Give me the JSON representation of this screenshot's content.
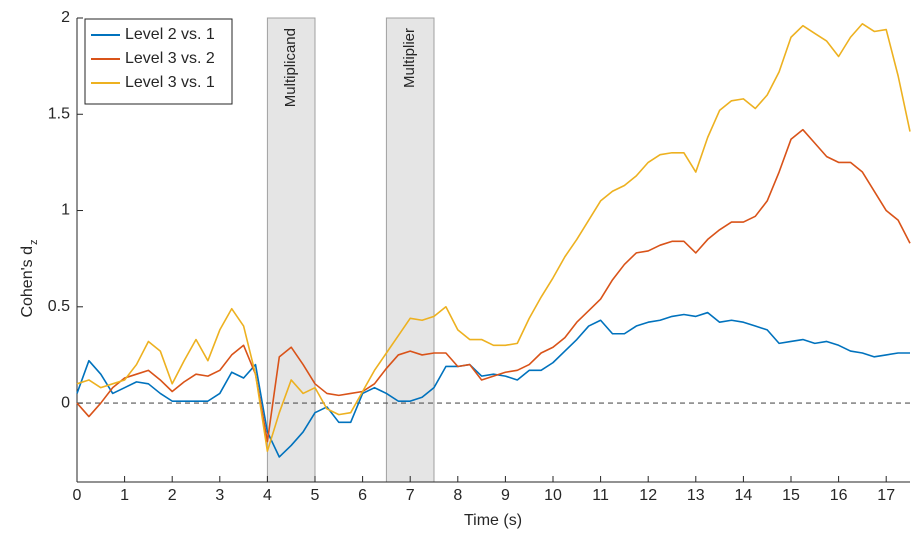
{
  "chart_data": {
    "type": "line",
    "x_label": "Time (s)",
    "y_label": "Cohen's d",
    "y_label_subscript": "z",
    "x": [
      0,
      0.25,
      0.5,
      0.75,
      1,
      1.25,
      1.5,
      1.75,
      2,
      2.25,
      2.5,
      2.75,
      3,
      3.25,
      3.5,
      3.75,
      4,
      4.25,
      4.5,
      4.75,
      5,
      5.25,
      5.5,
      5.75,
      6,
      6.25,
      6.5,
      6.75,
      7,
      7.25,
      7.5,
      7.75,
      8,
      8.25,
      8.5,
      8.75,
      9,
      9.25,
      9.5,
      9.75,
      10,
      10.25,
      10.5,
      10.75,
      11,
      11.25,
      11.5,
      11.75,
      12,
      12.25,
      12.5,
      12.75,
      13,
      13.25,
      13.5,
      13.75,
      14,
      14.25,
      14.5,
      14.75,
      15,
      15.25,
      15.5,
      15.75,
      16,
      16.25,
      16.5,
      16.75,
      17,
      17.25,
      17.5
    ],
    "series": [
      {
        "name": "Level 2 vs. 1",
        "color": "#0072BD",
        "values": [
          0.05,
          0.22,
          0.15,
          0.05,
          0.08,
          0.11,
          0.1,
          0.05,
          0.01,
          0.01,
          0.01,
          0.01,
          0.05,
          0.16,
          0.13,
          0.2,
          -0.15,
          -0.28,
          -0.22,
          -0.15,
          -0.05,
          -0.02,
          -0.1,
          -0.1,
          0.05,
          0.08,
          0.05,
          0.01,
          0.01,
          0.03,
          0.08,
          0.19,
          0.19,
          0.2,
          0.14,
          0.15,
          0.14,
          0.12,
          0.17,
          0.17,
          0.21,
          0.27,
          0.33,
          0.4,
          0.43,
          0.36,
          0.36,
          0.4,
          0.42,
          0.43,
          0.45,
          0.46,
          0.45,
          0.47,
          0.42,
          0.43,
          0.42,
          0.4,
          0.38,
          0.31,
          0.32,
          0.33,
          0.31,
          0.32,
          0.3,
          0.27,
          0.26,
          0.24,
          0.25,
          0.26,
          0.26
        ]
      },
      {
        "name": "Level 3 vs. 2",
        "color": "#D95319",
        "values": [
          0.0,
          -0.07,
          0.0,
          0.08,
          0.13,
          0.15,
          0.17,
          0.12,
          0.06,
          0.11,
          0.15,
          0.14,
          0.17,
          0.25,
          0.3,
          0.15,
          -0.2,
          0.24,
          0.29,
          0.2,
          0.1,
          0.05,
          0.04,
          0.05,
          0.06,
          0.1,
          0.18,
          0.25,
          0.27,
          0.25,
          0.26,
          0.26,
          0.19,
          0.2,
          0.12,
          0.14,
          0.16,
          0.17,
          0.2,
          0.26,
          0.29,
          0.34,
          0.42,
          0.48,
          0.54,
          0.64,
          0.72,
          0.78,
          0.79,
          0.82,
          0.84,
          0.84,
          0.78,
          0.85,
          0.9,
          0.94,
          0.94,
          0.97,
          1.05,
          1.2,
          1.37,
          1.42,
          1.35,
          1.28,
          1.25,
          1.25,
          1.2,
          1.1,
          1.0,
          0.95,
          0.83
        ]
      },
      {
        "name": "Level 3 vs. 1",
        "color": "#EDB120",
        "values": [
          0.1,
          0.12,
          0.08,
          0.1,
          0.12,
          0.2,
          0.32,
          0.27,
          0.1,
          0.22,
          0.33,
          0.22,
          0.38,
          0.49,
          0.4,
          0.15,
          -0.25,
          -0.05,
          0.12,
          0.05,
          0.08,
          -0.03,
          -0.06,
          -0.05,
          0.06,
          0.17,
          0.26,
          0.35,
          0.44,
          0.43,
          0.45,
          0.5,
          0.38,
          0.33,
          0.33,
          0.3,
          0.3,
          0.31,
          0.44,
          0.55,
          0.65,
          0.76,
          0.85,
          0.95,
          1.05,
          1.1,
          1.13,
          1.18,
          1.25,
          1.29,
          1.3,
          1.3,
          1.2,
          1.38,
          1.52,
          1.57,
          1.58,
          1.53,
          1.6,
          1.72,
          1.9,
          1.96,
          1.92,
          1.88,
          1.8,
          1.9,
          1.97,
          1.93,
          1.94,
          1.7,
          1.41
        ]
      }
    ],
    "xlim": [
      0,
      17.5
    ],
    "xticks": [
      0,
      1,
      2,
      3,
      4,
      5,
      6,
      7,
      8,
      9,
      10,
      11,
      12,
      13,
      14,
      15,
      16,
      17
    ],
    "ylim": [
      -0.41,
      2
    ],
    "yticks": [
      0,
      0.5,
      1,
      1.5,
      2
    ],
    "reference_line": 0,
    "shaded_regions": [
      {
        "start": 4,
        "end": 5,
        "label": "Multiplicand"
      },
      {
        "start": 6.5,
        "end": 7.5,
        "label": "Multiplier"
      }
    ],
    "legend": "top-left",
    "grid": false
  }
}
